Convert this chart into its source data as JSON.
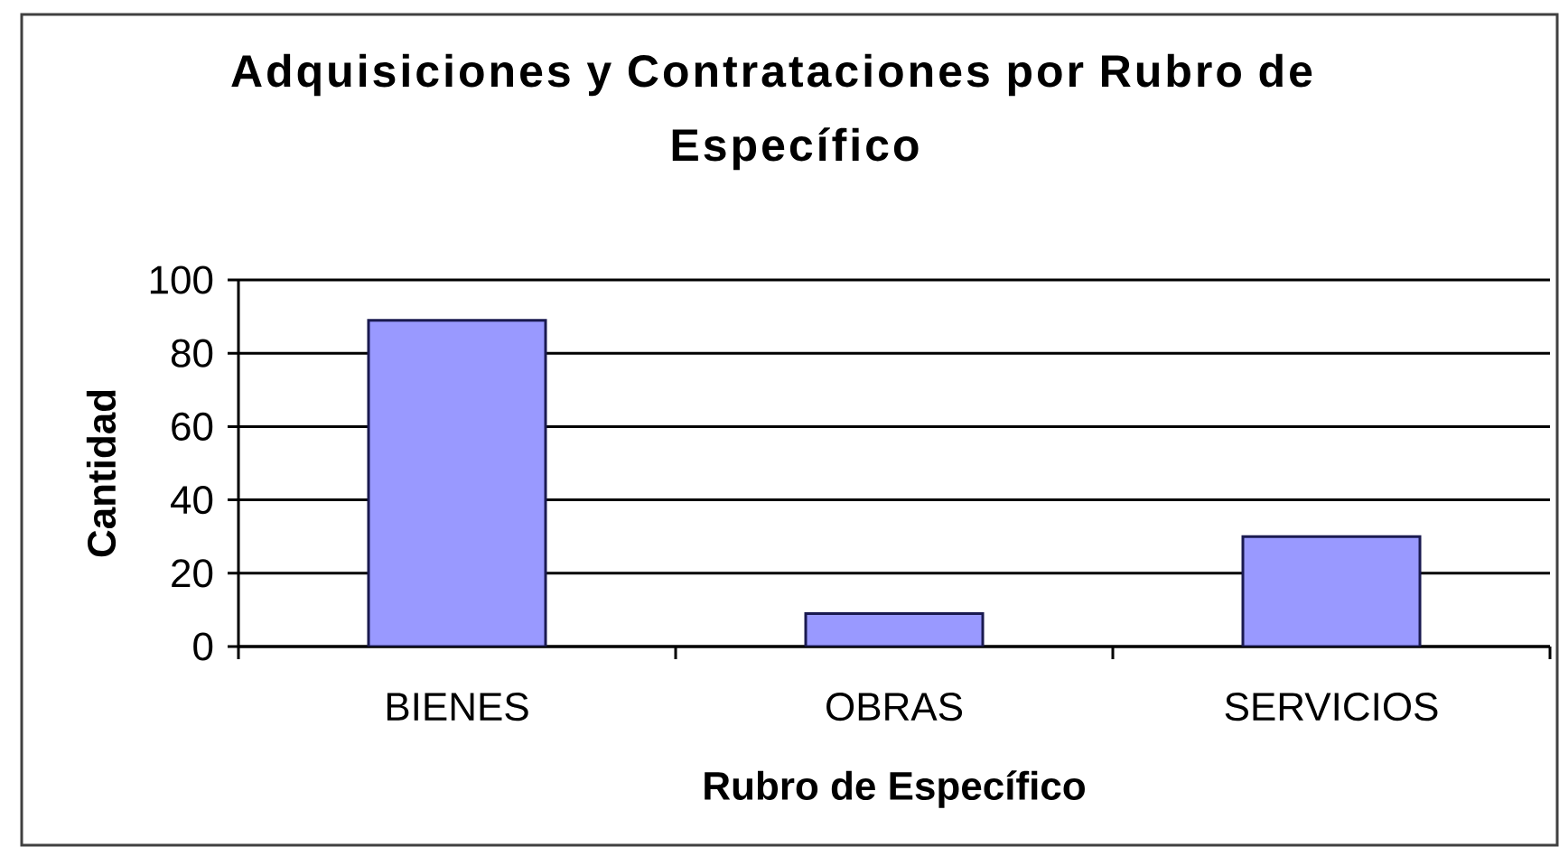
{
  "chart_data": {
    "type": "bar",
    "title": "Adquisiciones y Contrataciones por Rubro de Específico",
    "xlabel": "Rubro de Específico",
    "ylabel": "Cantidad",
    "categories": [
      "BIENES",
      "OBRAS",
      "SERVICIOS"
    ],
    "values": [
      89,
      9,
      30
    ],
    "color": "#9999ff",
    "ylim": [
      0,
      100
    ],
    "yticks": [
      0,
      20,
      40,
      60,
      80,
      100
    ],
    "grid": "y"
  }
}
